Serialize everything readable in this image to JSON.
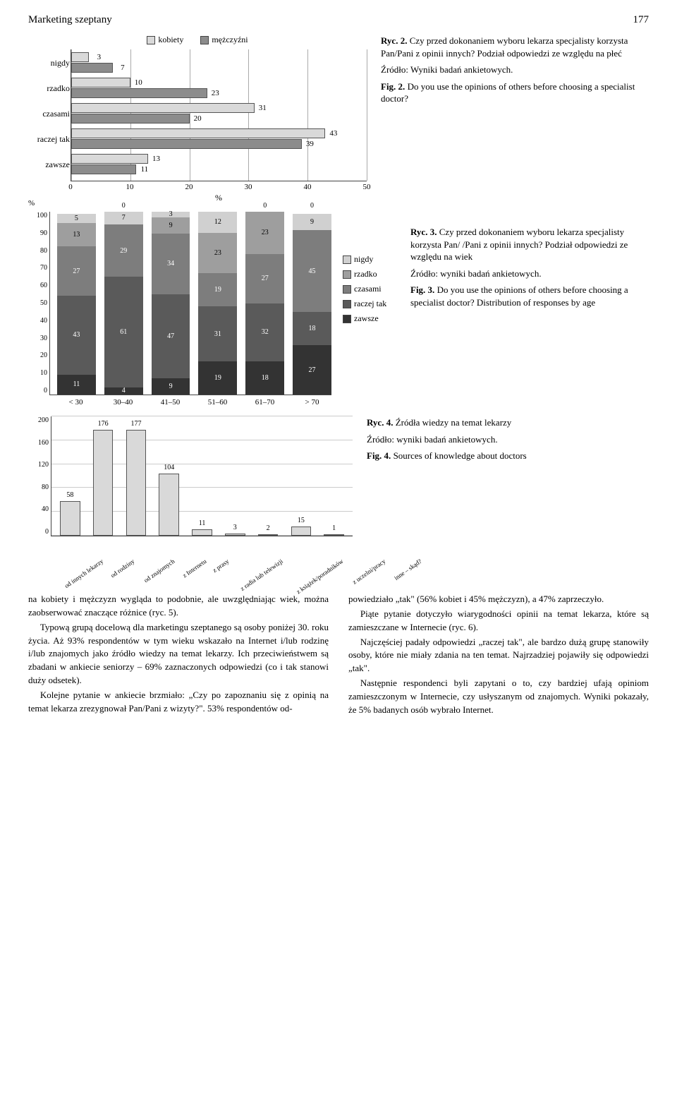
{
  "header": {
    "title": "Marketing szeptany",
    "page": "177"
  },
  "colors": {
    "kobiety": "#d9d9d9",
    "mezczyzni": "#8c8c8c",
    "grid": "#aaaaaa",
    "nigdy": "#d0d0d0",
    "rzadko": "#9e9e9e",
    "czasami": "#7d7d7d",
    "raczej_tak": "#5a5a5a",
    "zawsze": "#333333",
    "vbar_fill": "#d9d9d9"
  },
  "fig2": {
    "legend": {
      "k": "kobiety",
      "m": "mężczyźni"
    },
    "xmax": 50,
    "xtick_step": 10,
    "xlabel": "%",
    "categories": [
      "nigdy",
      "rzadko",
      "czasami",
      "raczej tak",
      "zawsze"
    ],
    "values_k": [
      3,
      10,
      31,
      43,
      13
    ],
    "values_m": [
      7,
      23,
      20,
      39,
      11
    ],
    "caption_pl_bold": "Ryc. 2.",
    "caption_pl": " Czy przed dokonaniem wyboru lekarza specjalisty korzysta Pan/Pani z opinii innych? Podział odpowiedzi ze względu na płeć",
    "src_pl": "Źródło: Wyniki badań ankietowych.",
    "caption_en_bold": "Fig. 2.",
    "caption_en": " Do you use the opinions of others before choosing a specialist doctor?"
  },
  "fig3": {
    "ylabel": "%",
    "ymax": 100,
    "ytick_step": 10,
    "categories": [
      "< 30",
      "30–40",
      "41–50",
      "51–60",
      "61–70",
      "> 70"
    ],
    "series_order": [
      "zawsze",
      "raczej_tak",
      "czasami",
      "rzadko",
      "nigdy"
    ],
    "legend_labels": {
      "nigdy": "nigdy",
      "rzadko": "rzadko",
      "czasami": "czasami",
      "raczej_tak": "raczej tak",
      "zawsze": "zawsze"
    },
    "data": {
      "zawsze": [
        11,
        4,
        9,
        19,
        18,
        27
      ],
      "raczej_tak": [
        43,
        61,
        47,
        31,
        32,
        18
      ],
      "czasami": [
        27,
        29,
        34,
        19,
        27,
        45
      ],
      "rzadko": [
        13,
        0,
        9,
        23,
        23,
        0
      ],
      "nigdy": [
        5,
        7,
        3,
        12,
        0,
        9
      ]
    },
    "above_labels": [
      "",
      "0",
      "",
      "",
      "0",
      "0"
    ],
    "caption_pl_bold": "Ryc. 3.",
    "caption_pl": " Czy przed dokonaniem wyboru lekarza specjalisty korzysta Pan/ /Pani z opinii innych? Podział odpowiedzi ze względu na wiek",
    "src_pl": "Źródło: wyniki badań ankietowych.",
    "caption_en_bold": "Fig. 3.",
    "caption_en": " Do you use the opinions of others before choosing a specialist doctor? Distribution of responses by age"
  },
  "fig4": {
    "ymax": 200,
    "ytick_step": 40,
    "categories": [
      "od innych lekarzy",
      "od rodziny",
      "od znajomych",
      "z Internetu",
      "z prasy",
      "z radia lub telewizji",
      "z książek/poradników",
      "z uczelni/pracy",
      "inne – skąd?"
    ],
    "values": [
      58,
      176,
      177,
      104,
      11,
      3,
      2,
      15,
      1
    ],
    "caption_pl_bold": "Ryc. 4.",
    "caption_pl": " Źródła wiedzy na temat lekarzy",
    "src_pl": "Źródło: wyniki badań ankietowych.",
    "caption_en_bold": "Fig. 4.",
    "caption_en": " Sources of knowledge about doctors"
  },
  "body": {
    "left": [
      "na kobiety i mężczyzn wygląda to podobnie, ale uwzględniając wiek, można zaobserwować znaczące różnice (ryc. 5).",
      "Typową grupą docelową dla marketingu szeptanego są osoby poniżej 30. roku życia. Aż 93% respondentów w tym wieku wskazało na Internet i/lub rodzinę i/lub znajomych jako źródło wiedzy na temat lekarzy. Ich przeciwieństwem są zbadani w ankiecie seniorzy – 69% zaznaczonych odpowiedzi (co i tak stanowi duży odsetek).",
      "Kolejne pytanie w ankiecie brzmiało: „Czy po zapoznaniu się z opinią na temat lekarza zrezygnował Pan/Pani z wizyty?\". 53% respondentów od-"
    ],
    "right": [
      "powiedziało „tak\" (56% kobiet i 45% mężczyzn), a 47% zaprzeczyło.",
      "Piąte pytanie dotyczyło wiarygodności opinii na temat lekarza, które są zamieszczane w Internecie (ryc. 6).",
      "Najczęściej padały odpowiedzi „raczej tak\", ale bardzo dużą grupę stanowiły osoby, które nie miały zdania na ten temat. Najrzadziej pojawiły się odpowiedzi „tak\".",
      "Następnie respondenci byli zapytani o to, czy bardziej ufają opiniom zamieszczonym w Internecie, czy usłyszanym od znajomych. Wyniki pokazały, że 5% badanych osób wybrało Internet."
    ]
  }
}
